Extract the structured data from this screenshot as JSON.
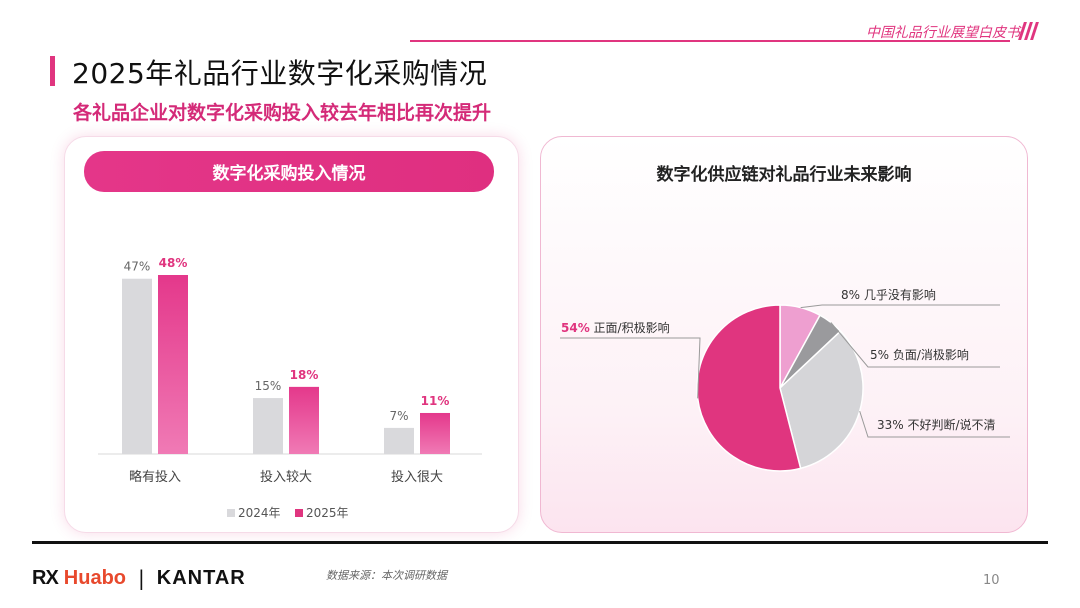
{
  "header": {
    "title": "中国礼品行业展望白皮书"
  },
  "page": {
    "title": "2025年礼品行业数字化采购情况",
    "subtitle": "各礼品企业对数字化采购投入较去年相比再次提升"
  },
  "left_panel": {
    "title": "数字化采购投入情况"
  },
  "right_panel": {
    "title": "数字化供应链对礼品行业未来影响"
  },
  "footer": {
    "brand_rx": "RX",
    "brand_huabo": "Huabo",
    "brand_sep": "|",
    "brand_kantar": "KANTAR",
    "source": "数据来源：本次调研数据",
    "page_number": "10"
  },
  "colors": {
    "accent": "#e0357f",
    "grey": "#d9d9dc",
    "pink_light": "#ee9fd0",
    "grey_dark": "#9a9a9d",
    "grey_mid": "#d5d5d8"
  },
  "chart_data": [
    {
      "type": "bar",
      "title": "数字化采购投入情况",
      "categories": [
        "略有投入",
        "投入较大",
        "投入很大"
      ],
      "series": [
        {
          "name": "2024年",
          "values": [
            47,
            15,
            7
          ],
          "labels": [
            "47%",
            "15%",
            "7%"
          ],
          "color": "#d9d9dc"
        },
        {
          "name": "2025年",
          "values": [
            48,
            18,
            11
          ],
          "labels": [
            "48%",
            "18%",
            "11%"
          ],
          "color": "#e0357f"
        }
      ],
      "unit": "%",
      "ylim": [
        0,
        50
      ],
      "grid": false,
      "legend": "bottom"
    },
    {
      "type": "pie",
      "title": "数字化供应链对礼品行业未来影响",
      "slices": [
        {
          "label": "几乎没有影响",
          "value": 8,
          "text": "8% 几乎没有影响",
          "color": "#ee9fd0"
        },
        {
          "label": "负面/消极影响",
          "value": 5,
          "text": "5% 负面/消极影响",
          "color": "#9a9a9d"
        },
        {
          "label": "不好判断/说不清",
          "value": 33,
          "text": "33% 不好判断/说不清",
          "color": "#d5d5d8"
        },
        {
          "label": "正面/积极影响",
          "value": 54,
          "text": "54% 正面/积极影响",
          "pct": "54%",
          "name": "正面/积极影响",
          "color": "#e0357f"
        }
      ]
    }
  ]
}
